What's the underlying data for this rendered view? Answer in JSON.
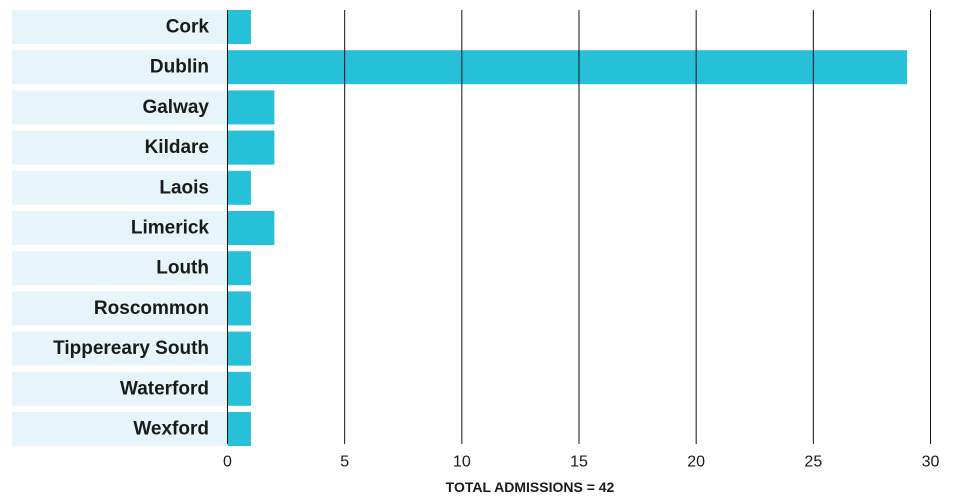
{
  "chart_data": {
    "type": "bar",
    "orientation": "horizontal",
    "categories": [
      "Cork",
      "Dublin",
      "Galway",
      "Kildare",
      "Laois",
      "Limerick",
      "Louth",
      "Roscommon",
      "Tippereary South",
      "Waterford",
      "Wexford"
    ],
    "values": [
      1,
      29,
      2,
      2,
      1,
      2,
      1,
      1,
      1,
      1,
      1
    ],
    "xlim": [
      0,
      30
    ],
    "xticks": [
      0,
      5,
      10,
      15,
      20,
      25,
      30
    ],
    "grid": "vertical",
    "title": "",
    "xlabel": "",
    "ylabel": "",
    "caption": "TOTAL ADMISSIONS = 42",
    "bar_color": "#26c0d8",
    "label_band_color": "#e6f5fa",
    "gridline_color": "#111111"
  }
}
